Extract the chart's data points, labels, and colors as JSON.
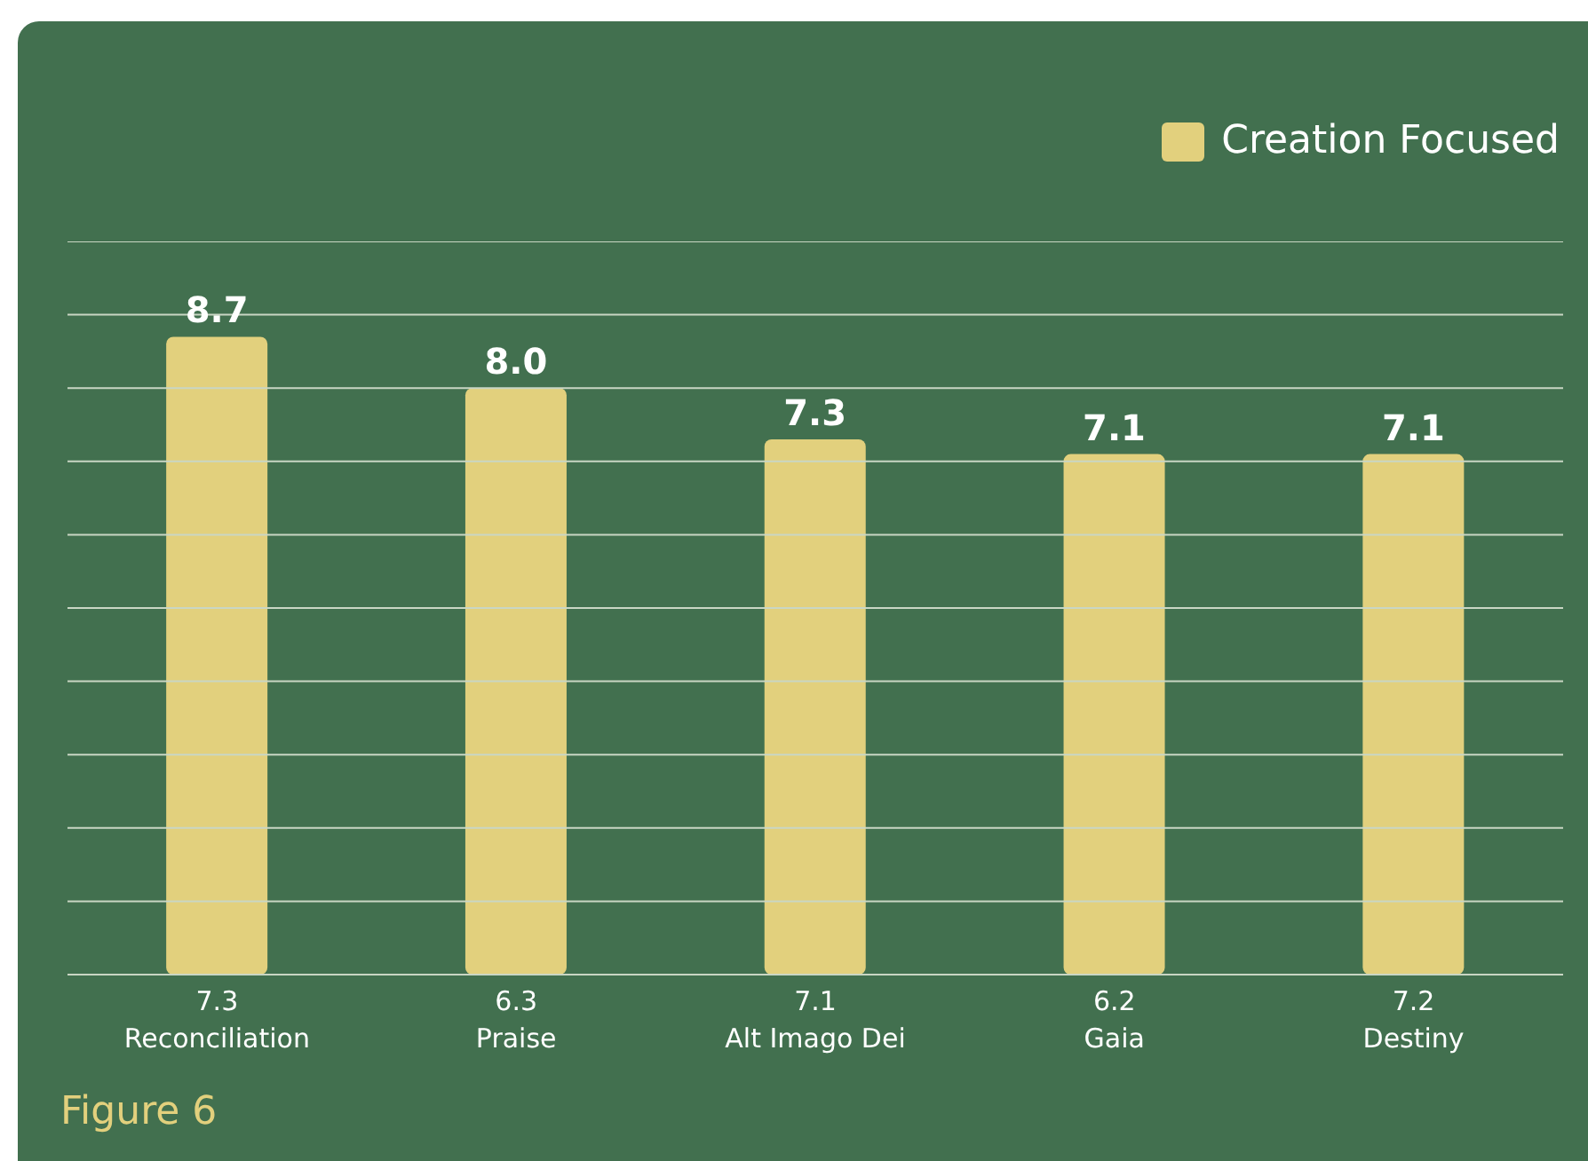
{
  "chart_data": {
    "type": "bar",
    "categories": [
      "7.3\nReconciliation",
      "6.3\nPraise",
      "7.1\nAlt Imago Dei",
      "6.2\nGaia",
      "7.2\nDestiny"
    ],
    "series": [
      {
        "name": "Creation Focused",
        "color": "#e2d07d",
        "values": [
          8.7,
          8.0,
          7.3,
          7.1,
          7.1
        ],
        "value_labels": [
          "8.7",
          "8.0",
          "7.3",
          "7.1",
          "7.1"
        ]
      }
    ],
    "ylim": [
      0,
      10
    ],
    "yticks": [
      {
        "value": 0,
        "label": null
      },
      {
        "value": 1,
        "label": null
      },
      {
        "value": 2,
        "label": null
      },
      {
        "value": 3,
        "label": null
      },
      {
        "value": 4,
        "label": null
      },
      {
        "value": 5,
        "label": null
      },
      {
        "value": 6,
        "label": null
      },
      {
        "value": 7,
        "label": null
      },
      {
        "value": 8,
        "label": null
      },
      {
        "value": 9,
        "label": null
      },
      {
        "value": 10,
        "label": null
      }
    ],
    "tick_labels": "x",
    "grid": "y",
    "legend": "top right",
    "annotations": [
      "Figure 6"
    ]
  }
}
